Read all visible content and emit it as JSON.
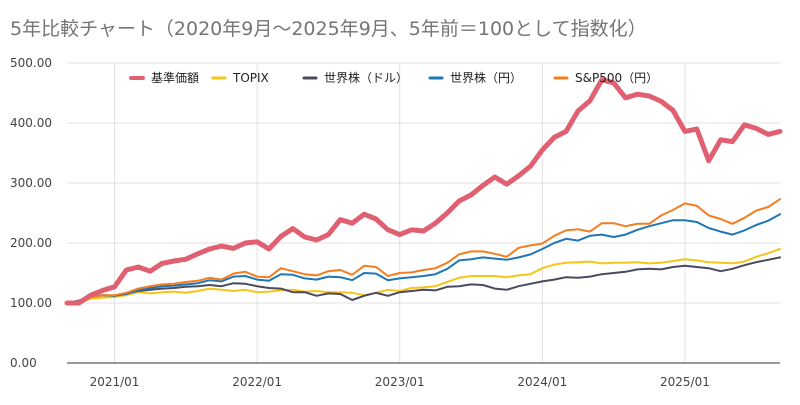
{
  "chart_data": {
    "type": "line",
    "title": "5年比較チャート（2020年9月〜2025年9月、5年前＝100として指数化）",
    "ylim": [
      0,
      500
    ],
    "yticks": [
      "0.00",
      "100.00",
      "200.00",
      "300.00",
      "400.00",
      "500.00"
    ],
    "xticks": [
      "2021/01",
      "2022/01",
      "2023/01",
      "2024/01",
      "2025/01"
    ],
    "xtick_index": [
      4,
      16,
      28,
      40,
      52
    ],
    "legend_position": "top",
    "grid": true,
    "x": [
      "2020/09",
      "2020/10",
      "2020/11",
      "2020/12",
      "2021/01",
      "2021/02",
      "2021/03",
      "2021/04",
      "2021/05",
      "2021/06",
      "2021/07",
      "2021/08",
      "2021/09",
      "2021/10",
      "2021/11",
      "2021/12",
      "2022/01",
      "2022/02",
      "2022/03",
      "2022/04",
      "2022/05",
      "2022/06",
      "2022/07",
      "2022/08",
      "2022/09",
      "2022/10",
      "2022/11",
      "2022/12",
      "2023/01",
      "2023/02",
      "2023/03",
      "2023/04",
      "2023/05",
      "2023/06",
      "2023/07",
      "2023/08",
      "2023/09",
      "2023/10",
      "2023/11",
      "2023/12",
      "2024/01",
      "2024/02",
      "2024/03",
      "2024/04",
      "2024/05",
      "2024/06",
      "2024/07",
      "2024/08",
      "2024/09",
      "2024/10",
      "2024/11",
      "2024/12",
      "2025/01",
      "2025/02",
      "2025/03",
      "2025/04",
      "2025/05",
      "2025/06",
      "2025/07",
      "2025/08",
      "2025/09"
    ],
    "series": [
      {
        "name": "基準価額",
        "color": "#e06072",
        "width": 5,
        "values": [
          100,
          100,
          113,
          121,
          127,
          155,
          160,
          153,
          166,
          170,
          173,
          182,
          190,
          195,
          191,
          200,
          202,
          190,
          211,
          224,
          210,
          205,
          214,
          239,
          233,
          248,
          240,
          222,
          214,
          222,
          220,
          233,
          250,
          270,
          280,
          296,
          310,
          298,
          312,
          328,
          355,
          376,
          386,
          420,
          437,
          472,
          467,
          442,
          448,
          445,
          436,
          421,
          386,
          390,
          337,
          372,
          369,
          397,
          391,
          381,
          386
        ]
      },
      {
        "name": "TOPIX",
        "color": "#f5c518",
        "width": 2,
        "values": [
          100,
          101,
          107,
          109,
          110,
          113,
          118,
          116,
          118,
          119,
          117,
          120,
          124,
          122,
          120,
          122,
          118,
          119,
          121,
          122,
          119,
          120,
          118,
          118,
          117,
          113,
          117,
          122,
          120,
          125,
          126,
          128,
          135,
          142,
          145,
          145,
          145,
          143,
          146,
          148,
          158,
          164,
          167,
          168,
          169,
          166,
          167,
          167,
          168,
          166,
          167,
          170,
          173,
          171,
          168,
          167,
          166,
          169,
          177,
          183,
          190
        ]
      },
      {
        "name": "世界株（ドル）",
        "color": "#4a4a5e",
        "width": 2,
        "values": [
          100,
          104,
          111,
          113,
          112,
          116,
          120,
          122,
          124,
          125,
          127,
          128,
          130,
          128,
          133,
          132,
          128,
          125,
          124,
          118,
          118,
          112,
          116,
          115,
          105,
          112,
          117,
          112,
          118,
          120,
          122,
          121,
          127,
          128,
          131,
          130,
          124,
          122,
          128,
          132,
          136,
          139,
          143,
          142,
          144,
          148,
          150,
          152,
          156,
          157,
          156,
          160,
          162,
          160,
          158,
          153,
          157,
          163,
          168,
          172,
          176
        ]
      },
      {
        "name": "世界株（円）",
        "color": "#1f77b4",
        "width": 2,
        "values": [
          100,
          102,
          110,
          113,
          112,
          115,
          121,
          125,
          128,
          129,
          131,
          133,
          138,
          136,
          144,
          145,
          139,
          137,
          148,
          147,
          141,
          139,
          144,
          143,
          138,
          150,
          149,
          138,
          141,
          143,
          145,
          148,
          157,
          171,
          173,
          176,
          174,
          172,
          176,
          181,
          190,
          200,
          207,
          204,
          212,
          214,
          210,
          214,
          222,
          228,
          233,
          238,
          238,
          235,
          225,
          219,
          214,
          221,
          230,
          237,
          248
        ]
      },
      {
        "name": "S&P500（円）",
        "color": "#f57c1f",
        "width": 2,
        "values": [
          100,
          102,
          110,
          113,
          113,
          117,
          124,
          128,
          131,
          132,
          135,
          137,
          142,
          139,
          149,
          152,
          144,
          143,
          158,
          153,
          148,
          146,
          153,
          155,
          147,
          162,
          160,
          145,
          150,
          151,
          155,
          158,
          167,
          181,
          186,
          186,
          182,
          177,
          192,
          196,
          199,
          212,
          221,
          223,
          219,
          233,
          233,
          228,
          232,
          232,
          246,
          255,
          266,
          262,
          246,
          240,
          232,
          242,
          254,
          260,
          273
        ]
      }
    ]
  }
}
